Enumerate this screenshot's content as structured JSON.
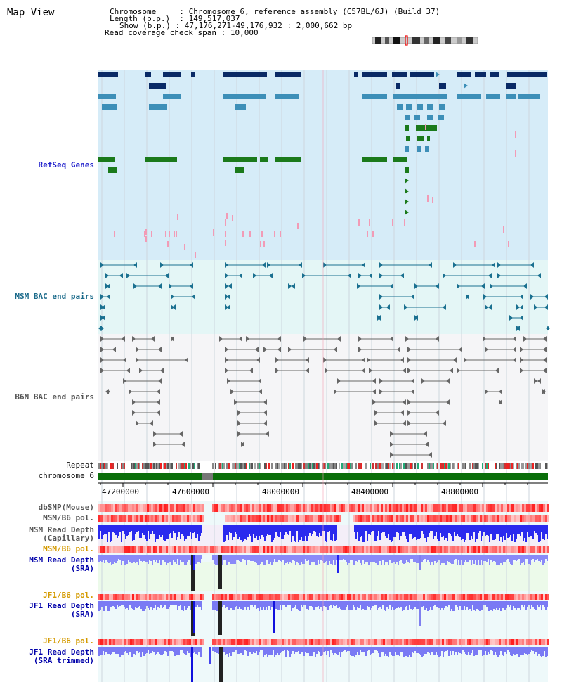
{
  "title": "Map View",
  "info": {
    "chromosome_label": "Chromosome",
    "chromosome_value": "Chromosome 6, reference assembly (C57BL/6J) (Build 37)",
    "length_label": "Length (b.p.)",
    "length_value": "149,517,037",
    "show_label": "Show (b.p.)",
    "show_value": "47,176,271-49,176,932 : 2,000,662 bp",
    "span_label": "Read coverage check span",
    "span_value": "10,000"
  },
  "tracks": {
    "refseq": "RefSeq Genes",
    "msm_bac": "MSM BAC end pairs",
    "b6n_bac": "B6N BAC end pairs",
    "repeat": "Repeat",
    "chromosome": "chromosome 6",
    "dbsnp": "dbSNP(Mouse)",
    "msm_b6_pol_1": "MSM/B6 pol.",
    "msm_read_cap_1": "MSM Read Depth",
    "msm_read_cap_2": "(Capillary)",
    "msm_b6_pol_2": "MSM/B6 pol.",
    "msm_read_sra_1": "MSM Read Depth",
    "msm_read_sra_2": "(SRA)",
    "jf1_b6_pol_1": "JF1/B6 pol.",
    "jf1_read_sra_1": "JF1 Read Depth",
    "jf1_read_sra_2": "(SRA)",
    "jf1_b6_pol_2": "JF1/B6 pol.",
    "jf1_read_trim_1": "JF1 Read Depth",
    "jf1_read_trim_2": "(SRA trimmed)"
  },
  "axis_ticks": [
    "47200000",
    "47600000",
    "48000000",
    "48400000",
    "48800000"
  ],
  "colors": {
    "refseq_bg": "#d6ecf8",
    "msm_bg": "#e4f6f6",
    "b6n_bg": "#f4f4f6",
    "gene_dark": "#0a2a66",
    "gene_mid": "#3d8fb8",
    "gene_green": "#1b7a1b",
    "pink": "#f29bb6",
    "chrom_green": "#0a6e0a",
    "read_blue": "#2222ee",
    "read_light": "#8888ff"
  }
}
